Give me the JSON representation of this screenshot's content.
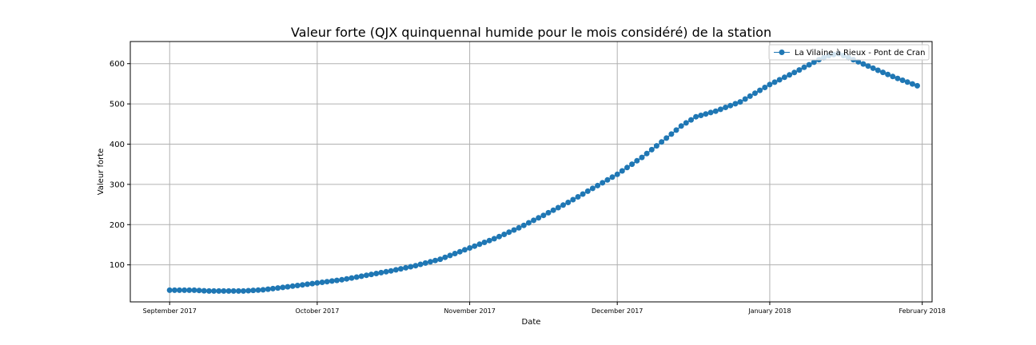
{
  "chart_data": {
    "type": "line",
    "title": "Valeur forte (QJX quinquennal humide pour le mois considéré) de la station",
    "xlabel": "Date",
    "ylabel": "Valeur forte",
    "x_start": "2017-09-01",
    "x_end": "2018-01-31",
    "xlim": [
      "2017-08-24",
      "2018-02-03"
    ],
    "ylim": [
      8,
      655
    ],
    "y_ticks": [
      "100",
      "200",
      "300",
      "400",
      "500",
      "600"
    ],
    "x_ticks": [
      {
        "date": "2017-09-01",
        "label": "September 2017"
      },
      {
        "date": "2017-10-01",
        "label": "October 2017"
      },
      {
        "date": "2017-11-01",
        "label": "November 2017"
      },
      {
        "date": "2017-12-01",
        "label": "December 2017"
      },
      {
        "date": "2018-01-01",
        "label": "January 2018"
      },
      {
        "date": "2018-02-01",
        "label": "February 2018"
      }
    ],
    "grid": true,
    "legend_position": "top-right",
    "colors": {
      "series": "#1f77b4",
      "grid": "#b0b0b0",
      "axis": "#000000"
    },
    "series": [
      {
        "name": "La Vilaine à Rieux - Pont de Cran",
        "marker": "circle",
        "anchors": [
          {
            "date": "2017-09-01",
            "value": 37
          },
          {
            "date": "2017-09-06",
            "value": 37
          },
          {
            "date": "2017-09-09",
            "value": 35
          },
          {
            "date": "2017-09-16",
            "value": 35
          },
          {
            "date": "2017-09-20",
            "value": 38
          },
          {
            "date": "2017-09-26",
            "value": 47
          },
          {
            "date": "2017-10-01",
            "value": 55
          },
          {
            "date": "2017-10-06",
            "value": 63
          },
          {
            "date": "2017-10-11",
            "value": 74
          },
          {
            "date": "2017-10-16",
            "value": 85
          },
          {
            "date": "2017-10-21",
            "value": 98
          },
          {
            "date": "2017-10-26",
            "value": 114
          },
          {
            "date": "2017-11-01",
            "value": 142
          },
          {
            "date": "2017-11-06",
            "value": 165
          },
          {
            "date": "2017-11-11",
            "value": 192
          },
          {
            "date": "2017-11-16",
            "value": 223
          },
          {
            "date": "2017-11-21",
            "value": 255
          },
          {
            "date": "2017-11-26",
            "value": 290
          },
          {
            "date": "2017-12-01",
            "value": 325
          },
          {
            "date": "2017-12-06",
            "value": 367
          },
          {
            "date": "2017-12-11",
            "value": 415
          },
          {
            "date": "2017-12-14",
            "value": 445
          },
          {
            "date": "2017-12-17",
            "value": 468
          },
          {
            "date": "2017-12-21",
            "value": 482
          },
          {
            "date": "2017-12-26",
            "value": 505
          },
          {
            "date": "2018-01-01",
            "value": 548
          },
          {
            "date": "2018-01-06",
            "value": 578
          },
          {
            "date": "2018-01-11",
            "value": 610
          },
          {
            "date": "2018-01-13",
            "value": 620
          },
          {
            "date": "2018-01-15",
            "value": 625
          },
          {
            "date": "2018-01-17",
            "value": 615
          },
          {
            "date": "2018-01-21",
            "value": 594
          },
          {
            "date": "2018-01-26",
            "value": 568
          },
          {
            "date": "2018-01-31",
            "value": 545
          }
        ]
      }
    ]
  }
}
